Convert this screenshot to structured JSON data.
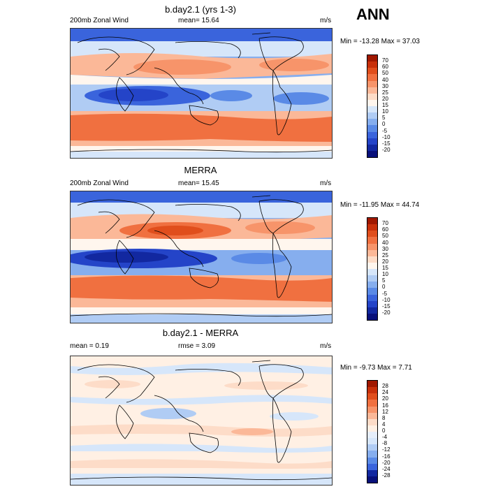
{
  "season": "ANN",
  "panels": [
    {
      "title": "b.day2.1 (yrs 1-3)",
      "left_label": "200mb Zonal Wind",
      "center_label": "mean=  15.64",
      "units": "m/s",
      "minmax": "Min = -13.28 Max =  37.03",
      "ticks": [
        "70",
        "60",
        "50",
        "40",
        "30",
        "25",
        "20",
        "15",
        "10",
        "5",
        "0",
        "-5",
        "-10",
        "-15",
        "-20"
      ],
      "colors": [
        "#a01800",
        "#c8300a",
        "#e04e1c",
        "#f07040",
        "#f7946a",
        "#fbb898",
        "#fddcc8",
        "#fff6ee",
        "#d6e6fa",
        "#b0ccf4",
        "#86aeee",
        "#5a8ae6",
        "#3a64dc",
        "#2444c8",
        "#1228a0",
        "#08107a"
      ]
    },
    {
      "title": "MERRA",
      "left_label": "200mb Zonal Wind",
      "center_label": "mean=  15.45",
      "units": "m/s",
      "minmax": "Min = -11.95 Max =  44.74",
      "ticks": [
        "70",
        "60",
        "50",
        "40",
        "30",
        "25",
        "20",
        "15",
        "10",
        "5",
        "0",
        "-5",
        "-10",
        "-15",
        "-20"
      ],
      "colors": [
        "#a01800",
        "#c8300a",
        "#e04e1c",
        "#f07040",
        "#f7946a",
        "#fbb898",
        "#fddcc8",
        "#fff6ee",
        "#d6e6fa",
        "#b0ccf4",
        "#86aeee",
        "#5a8ae6",
        "#3a64dc",
        "#2444c8",
        "#1228a0",
        "#08107a"
      ]
    },
    {
      "title": "b.day2.1 - MERRA",
      "left_label": "mean =   0.19",
      "center_label": "rmse =   3.09",
      "units": "m/s",
      "minmax": "Min =  -9.73 Max =   7.71",
      "ticks": [
        "28",
        "24",
        "20",
        "16",
        "12",
        "8",
        "4",
        "0",
        "-4",
        "-8",
        "-12",
        "-16",
        "-20",
        "-24",
        "-28"
      ],
      "colors": [
        "#a01800",
        "#c8300a",
        "#e04e1c",
        "#f07040",
        "#f7946a",
        "#fbb898",
        "#fddcc8",
        "#fff0e4",
        "#e6eefa",
        "#d6e6fa",
        "#b0ccf4",
        "#86aeee",
        "#5a8ae6",
        "#3a64dc",
        "#1228a0",
        "#08107a"
      ]
    }
  ],
  "chart_data": [
    {
      "type": "heatmap",
      "title": "b.day2.1 (yrs 1-3)",
      "variable": "200mb Zonal Wind",
      "units": "m/s",
      "mean": 15.64,
      "min": -13.28,
      "max": 37.03,
      "levels": [
        -20,
        -15,
        -10,
        -5,
        0,
        5,
        10,
        15,
        20,
        25,
        30,
        40,
        50,
        60,
        70
      ]
    },
    {
      "type": "heatmap",
      "title": "MERRA",
      "variable": "200mb Zonal Wind",
      "units": "m/s",
      "mean": 15.45,
      "min": -11.95,
      "max": 44.74,
      "levels": [
        -20,
        -15,
        -10,
        -5,
        0,
        5,
        10,
        15,
        20,
        25,
        30,
        40,
        50,
        60,
        70
      ]
    },
    {
      "type": "heatmap",
      "title": "b.day2.1 - MERRA",
      "units": "m/s",
      "mean": 0.19,
      "rmse": 3.09,
      "min": -9.73,
      "max": 7.71,
      "levels": [
        -28,
        -24,
        -20,
        -16,
        -12,
        -8,
        -4,
        0,
        4,
        8,
        12,
        16,
        20,
        24,
        28
      ]
    }
  ]
}
